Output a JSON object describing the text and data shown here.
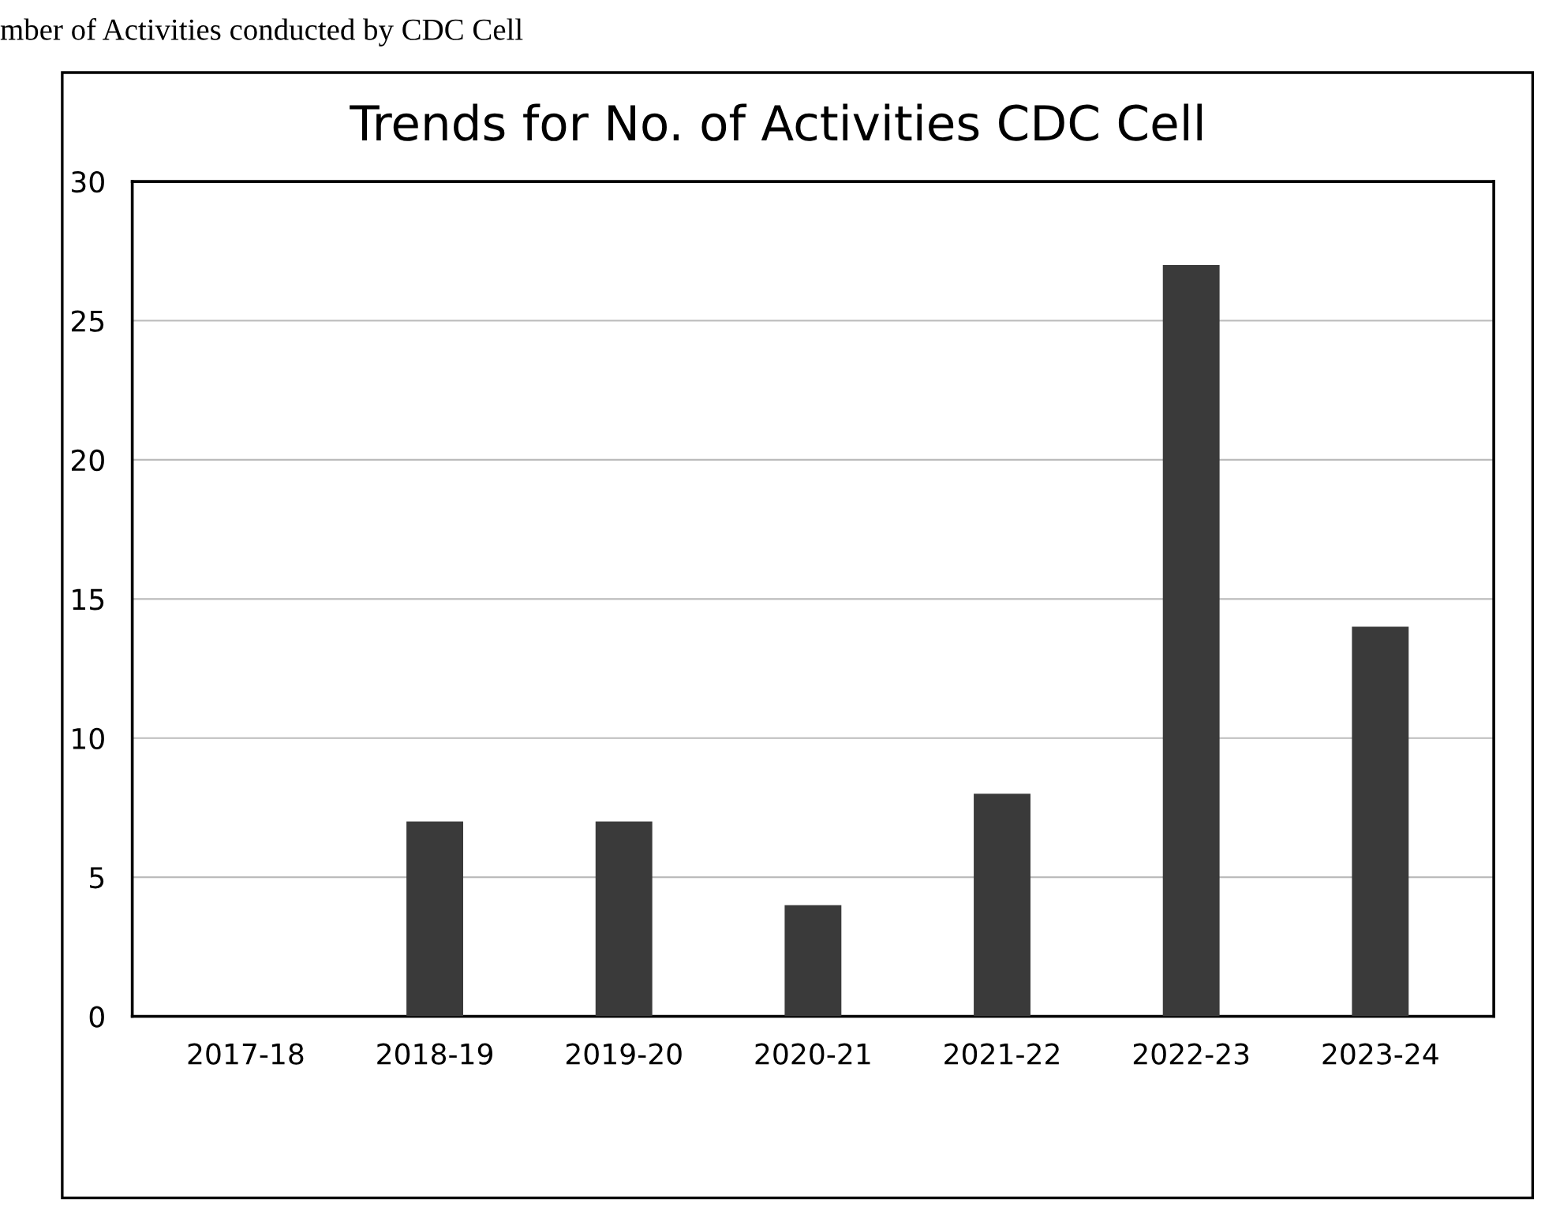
{
  "chart_data": {
    "type": "bar",
    "title": "Trends for No. of Activities CDC Cell",
    "annotations": [
      "mber of Activities conducted by CDC Cell"
    ],
    "categories": [
      "2017-18",
      "2018-19",
      "2019-20",
      "2020-21",
      "2021-22",
      "2022-23",
      "2023-24"
    ],
    "values": [
      0,
      7,
      7,
      4,
      8,
      27,
      14
    ],
    "color": "#3a3a3a",
    "ylim": [
      0,
      30
    ],
    "yticks": [
      0,
      5,
      10,
      15,
      20,
      25,
      30
    ],
    "grid": "y"
  }
}
